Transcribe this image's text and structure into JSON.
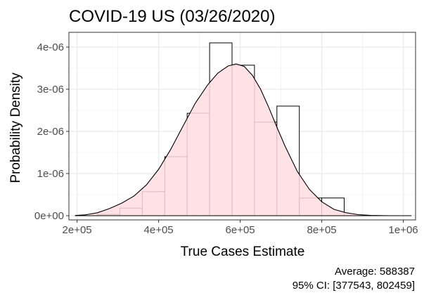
{
  "chart_data": {
    "type": "histogram-density",
    "title": "COVID-19 US (03/26/2020)",
    "xlabel": "True Cases Estimate",
    "ylabel": "Probability Density",
    "xlim": [
      180000,
      1030000
    ],
    "ylim": [
      -100000000000,
      4350000000000
    ],
    "y_scale_factor": 1e-18,
    "x_ticks": [
      {
        "value": 200000,
        "label": "2e+05"
      },
      {
        "value": 400000,
        "label": "4e+05"
      },
      {
        "value": 600000,
        "label": "6e+05"
      },
      {
        "value": 800000,
        "label": "8e+05"
      },
      {
        "value": 1000000,
        "label": "1e+06"
      }
    ],
    "y_ticks": [
      {
        "value": 0,
        "label": "0e+00"
      },
      {
        "value": 1000000000000,
        "label": "1e-06"
      },
      {
        "value": 2000000000000,
        "label": "2e-06"
      },
      {
        "value": 3000000000000,
        "label": "3e-06"
      },
      {
        "value": 4000000000000,
        "label": "4e-06"
      }
    ],
    "grid": true,
    "histogram": {
      "bin_edges": [
        250000,
        305000,
        360000,
        415000,
        470000,
        525000,
        580000,
        635000,
        690000,
        745000,
        800000,
        855000
      ],
      "densities": [
        30000000000,
        180000000000,
        570000000000,
        1400000000000,
        2430000000000,
        4100000000000,
        3570000000000,
        2220000000000,
        2600000000000,
        420000000000,
        420000000000
      ],
      "fill": "#ffffff",
      "stroke": "#000000"
    },
    "density": {
      "x": [
        195000,
        220000,
        250000,
        280000,
        310000,
        340000,
        370000,
        400000,
        430000,
        460000,
        490000,
        520000,
        545000,
        570000,
        590000,
        610000,
        630000,
        650000,
        670000,
        690000,
        710000,
        740000,
        770000,
        800000,
        830000,
        860000,
        890000,
        920000,
        950000,
        970000
      ],
      "y": [
        5000000000,
        20000000000,
        70000000000,
        170000000000,
        300000000000,
        470000000000,
        730000000000,
        1100000000000,
        1580000000000,
        2130000000000,
        2670000000000,
        3100000000000,
        3380000000000,
        3550000000000,
        3600000000000,
        3540000000000,
        3330000000000,
        3000000000000,
        2570000000000,
        2100000000000,
        1650000000000,
        1050000000000,
        620000000000,
        330000000000,
        150000000000,
        70000000000,
        25000000000,
        8000000000,
        2000000000,
        0
      ],
      "fill": "#ffdde1",
      "stroke": "#000000"
    },
    "baseline_x": [
      195000,
      1020000
    ],
    "caption": [
      "Average: 588387",
      "95% CI: [377543, 802459]"
    ]
  }
}
